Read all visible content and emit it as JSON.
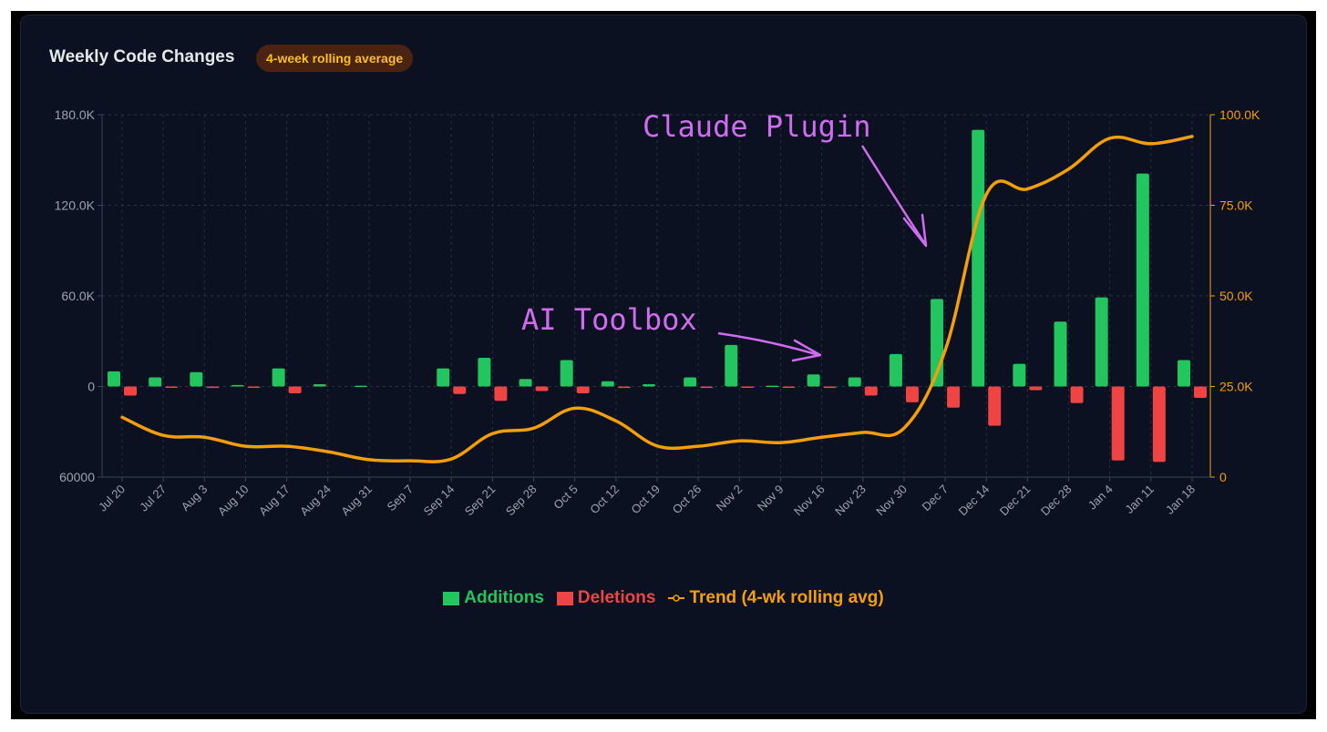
{
  "header": {
    "title": "Weekly Code Changes",
    "badge": "4-week rolling average"
  },
  "colors": {
    "additions": "#22c55e",
    "deletions": "#ef4444",
    "trend": "#f59e0b",
    "annotation": "#d06cf0",
    "axis_left": "#9ca3af",
    "axis_right": "#f59e0b"
  },
  "legend": {
    "additions": "Additions",
    "deletions": "Deletions",
    "trend": "Trend (4-wk rolling avg)"
  },
  "chart_data": {
    "type": "bar",
    "categories": [
      "Jul 20",
      "Jul 27",
      "Aug 3",
      "Aug 10",
      "Aug 17",
      "Aug 24",
      "Aug 31",
      "Sep 7",
      "Sep 14",
      "Sep 21",
      "Sep 28",
      "Oct 5",
      "Oct 12",
      "Oct 19",
      "Oct 26",
      "Nov 2",
      "Nov 9",
      "Nov 16",
      "Nov 23",
      "Nov 30",
      "Dec 7",
      "Dec 14",
      "Dec 21",
      "Dec 28",
      "Jan 4",
      "Jan 11",
      "Jan 18"
    ],
    "series": [
      {
        "name": "Additions",
        "axis": "left",
        "values": [
          10000,
          6000,
          9500,
          1000,
          12000,
          1500,
          500,
          0,
          12000,
          19000,
          5000,
          17500,
          3500,
          1500,
          6000,
          27500,
          500,
          8000,
          6000,
          21500,
          58000,
          170000,
          15000,
          43000,
          59000,
          141000,
          17500
        ]
      },
      {
        "name": "Deletions",
        "axis": "left",
        "values": [
          -6000,
          -500,
          -1000,
          -500,
          -4500,
          0,
          0,
          0,
          -5000,
          -9500,
          -3000,
          -4500,
          -1000,
          0,
          -1000,
          -500,
          -500,
          -1000,
          -6000,
          -10500,
          -14000,
          -26000,
          -2500,
          -11000,
          -49000,
          -50000,
          -7500
        ]
      },
      {
        "name": "Trend (4-wk rolling avg)",
        "axis": "right",
        "type": "line",
        "values": [
          16500,
          11500,
          11000,
          8500,
          8500,
          7000,
          4800,
          4500,
          5000,
          12000,
          13500,
          19000,
          15500,
          8600,
          8500,
          10000,
          9500,
          11000,
          12300,
          13500,
          35000,
          78000,
          79500,
          85000,
          93500,
          92000,
          94000
        ]
      }
    ],
    "ylim_left": [
      -60000,
      180000
    ],
    "yticks_left": [
      "180.0K",
      "120.0K",
      "60.0K",
      "0",
      "60000"
    ],
    "ylim_right": [
      0,
      100000
    ],
    "yticks_right": [
      "100.0K",
      "75.0K",
      "50.0K",
      "25.0K",
      "0"
    ],
    "grid": "dashed",
    "legend_position": "bottom-center",
    "annotations": [
      "Claude Plugin",
      "AI Toolbox"
    ]
  }
}
